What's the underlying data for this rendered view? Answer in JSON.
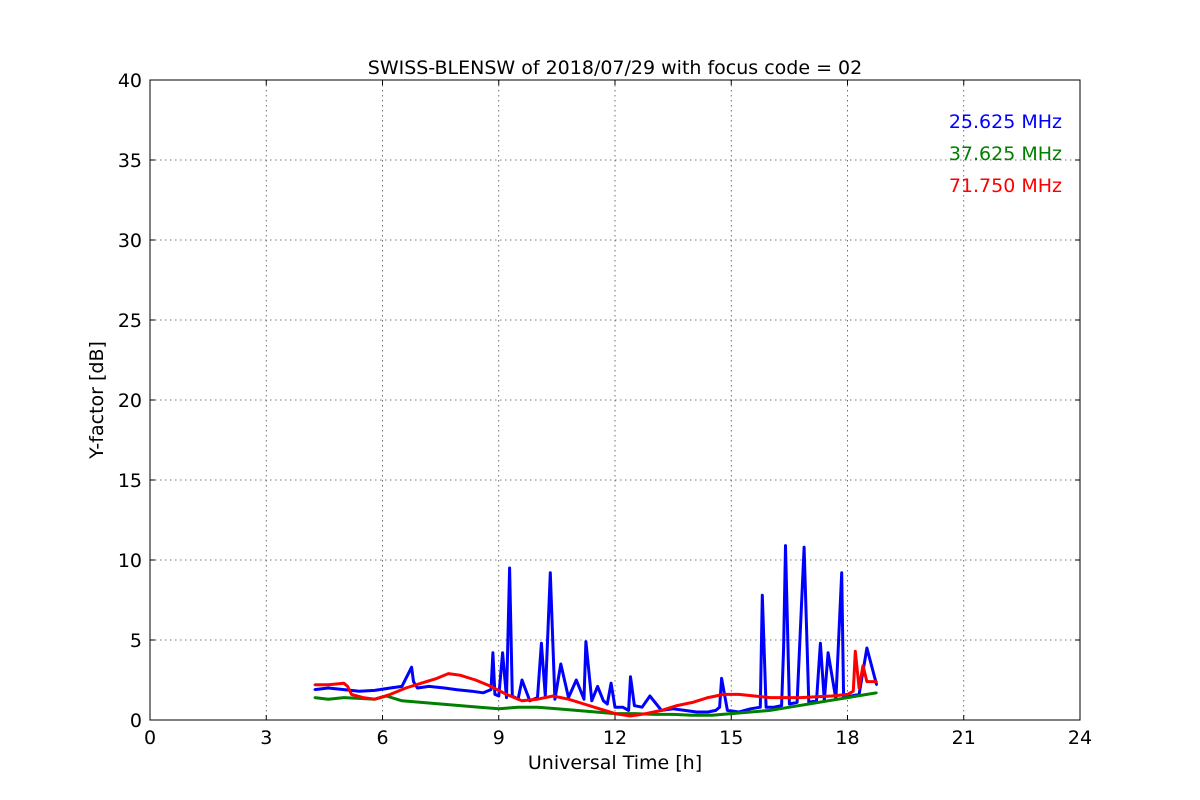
{
  "chart_data": {
    "type": "line",
    "title": "SWISS-BLENSW of 2018/07/29 with focus code = 02",
    "xlabel": "Universal Time [h]",
    "ylabel": "Y-factor [dB]",
    "xlim": [
      0,
      24
    ],
    "ylim": [
      0,
      40
    ],
    "xticks": [
      0,
      3,
      6,
      9,
      12,
      15,
      18,
      21,
      24
    ],
    "yticks": [
      0,
      5,
      10,
      15,
      20,
      25,
      30,
      35,
      40
    ],
    "grid": true,
    "legend_position": "top-right",
    "series": [
      {
        "name": "25.625 MHz",
        "color": "#0000ff",
        "x": [
          4.25,
          4.6,
          5.0,
          5.4,
          5.8,
          6.2,
          6.5,
          6.75,
          6.8,
          6.9,
          7.2,
          7.6,
          7.9,
          8.3,
          8.6,
          8.8,
          8.85,
          8.9,
          9.0,
          9.1,
          9.2,
          9.28,
          9.35,
          9.5,
          9.6,
          9.8,
          10.0,
          10.1,
          10.2,
          10.33,
          10.45,
          10.6,
          10.8,
          11.0,
          11.2,
          11.25,
          11.4,
          11.55,
          11.7,
          11.8,
          11.9,
          12.0,
          12.2,
          12.35,
          12.4,
          12.5,
          12.7,
          12.9,
          13.2,
          13.5,
          13.8,
          14.1,
          14.4,
          14.6,
          14.7,
          14.75,
          14.9,
          15.2,
          15.5,
          15.75,
          15.8,
          15.9,
          16.1,
          16.3,
          16.35,
          16.4,
          16.5,
          16.7,
          16.88,
          17.0,
          17.2,
          17.3,
          17.4,
          17.5,
          17.7,
          17.85,
          17.9,
          18.1,
          18.3,
          18.5,
          18.75
        ],
        "values": [
          1.9,
          2.0,
          1.9,
          1.8,
          1.85,
          2.0,
          2.1,
          3.3,
          2.4,
          2.0,
          2.1,
          2.0,
          1.9,
          1.8,
          1.7,
          1.9,
          4.2,
          1.6,
          1.5,
          4.2,
          1.4,
          9.5,
          1.5,
          1.3,
          2.5,
          1.2,
          1.4,
          4.8,
          1.5,
          9.2,
          1.3,
          3.5,
          1.4,
          2.5,
          1.3,
          4.9,
          1.2,
          2.1,
          1.2,
          1.0,
          2.3,
          0.8,
          0.8,
          0.6,
          2.7,
          0.9,
          0.8,
          1.5,
          0.6,
          0.7,
          0.6,
          0.5,
          0.5,
          0.6,
          0.8,
          2.6,
          0.6,
          0.5,
          0.7,
          0.8,
          7.8,
          0.8,
          0.8,
          0.9,
          4.5,
          10.9,
          1.0,
          1.1,
          10.8,
          1.1,
          1.2,
          4.8,
          1.2,
          4.2,
          1.3,
          9.2,
          1.4,
          1.5,
          1.6,
          4.5,
          2.2
        ]
      },
      {
        "name": "37.625 MHz",
        "color": "#008000",
        "x": [
          4.25,
          4.6,
          5.0,
          5.4,
          5.8,
          6.1,
          6.5,
          7.0,
          7.5,
          8.0,
          8.5,
          9.0,
          9.5,
          10.0,
          10.5,
          11.0,
          11.5,
          12.0,
          12.5,
          13.0,
          13.5,
          14.0,
          14.5,
          15.0,
          15.5,
          16.0,
          16.5,
          17.0,
          17.5,
          18.0,
          18.5,
          18.75
        ],
        "values": [
          1.4,
          1.3,
          1.4,
          1.35,
          1.3,
          1.5,
          1.2,
          1.1,
          1.0,
          0.9,
          0.8,
          0.7,
          0.8,
          0.8,
          0.7,
          0.6,
          0.5,
          0.4,
          0.4,
          0.35,
          0.35,
          0.3,
          0.3,
          0.4,
          0.5,
          0.6,
          0.8,
          1.0,
          1.2,
          1.4,
          1.6,
          1.7
        ]
      },
      {
        "name": "71.750 MHz",
        "color": "#ff0000",
        "x": [
          4.25,
          4.6,
          5.0,
          5.1,
          5.2,
          5.5,
          5.8,
          6.2,
          6.6,
          7.0,
          7.4,
          7.7,
          8.0,
          8.4,
          8.8,
          9.2,
          9.6,
          10.0,
          10.4,
          10.8,
          11.2,
          11.6,
          12.0,
          12.4,
          12.8,
          13.2,
          13.6,
          14.0,
          14.4,
          14.8,
          15.2,
          15.6,
          16.0,
          16.4,
          16.8,
          17.2,
          17.6,
          18.0,
          18.15,
          18.2,
          18.3,
          18.4,
          18.5,
          18.75
        ],
        "values": [
          2.2,
          2.2,
          2.3,
          2.1,
          1.6,
          1.4,
          1.3,
          1.6,
          2.0,
          2.3,
          2.6,
          2.9,
          2.8,
          2.5,
          2.1,
          1.6,
          1.2,
          1.3,
          1.5,
          1.3,
          1.0,
          0.7,
          0.4,
          0.25,
          0.4,
          0.6,
          0.9,
          1.1,
          1.4,
          1.6,
          1.6,
          1.5,
          1.4,
          1.4,
          1.4,
          1.45,
          1.5,
          1.6,
          1.8,
          4.3,
          2.0,
          3.4,
          2.4,
          2.4
        ]
      }
    ]
  }
}
